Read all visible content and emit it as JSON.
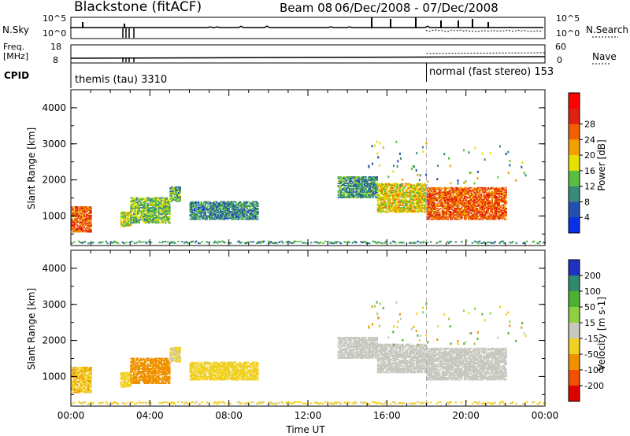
{
  "header": {
    "title": "Blackstone (fitACF)",
    "beam": "Beam 08",
    "dates": "06/Dec/2008 - 07/Dec/2008"
  },
  "top_panels": {
    "nsky_label": "N.Sky",
    "nsky_ticks": [
      "10^5",
      "10^0"
    ],
    "nsearch_label": "N.Search",
    "nsearch_ticks": [
      "10^5",
      "10^0"
    ],
    "freq_label_1": "Freq.",
    "freq_label_2": "[MHz]",
    "freq_ticks": [
      "18",
      "8"
    ],
    "nave_label": "Nave",
    "nave_ticks": [
      "60",
      "0"
    ],
    "cpid_label": "CPID",
    "cpid_segments": [
      {
        "label": "themis (tau) 3310",
        "start_hour": 0,
        "end_hour": 18
      },
      {
        "label": "normal (fast stereo) 153",
        "start_hour": 18,
        "end_hour": 24
      }
    ]
  },
  "axes": {
    "ylabel": "Slant Range [km]",
    "yticks": [
      "1000",
      "2000",
      "3000",
      "4000"
    ],
    "xticks": [
      "00:00",
      "04:00",
      "08:00",
      "12:00",
      "16:00",
      "20:00",
      "00:00"
    ],
    "xlabel": "Time UT"
  },
  "colorbars": {
    "power": {
      "label": "Power [dB]",
      "ticks": [
        "4",
        "8",
        "12",
        "16",
        "20",
        "24",
        "28"
      ],
      "colors": [
        "#0a2fe6",
        "#234fb0",
        "#3a8a7a",
        "#58c040",
        "#e6e000",
        "#f0a000",
        "#f06000",
        "#e02010",
        "#ff0000"
      ]
    },
    "velocity": {
      "label": "Velocity [m s-1]",
      "ticks": [
        "200",
        "100",
        "50",
        "15",
        "-15",
        "-50",
        "-100",
        "-200"
      ],
      "colors": [
        "#2030c0",
        "#2e8a6e",
        "#4cb030",
        "#8fd040",
        "#c8c8c0",
        "#f0d020",
        "#f09000",
        "#f05000",
        "#e00000"
      ]
    }
  },
  "chart_data": [
    {
      "type": "heatmap",
      "title": "Power",
      "xlabel": "Time UT",
      "ylabel": "Slant Range [km]",
      "xlim": [
        0,
        24
      ],
      "ylim": [
        180,
        4500
      ],
      "colorbar_label": "Power [dB]",
      "colorbar_range": [
        0,
        30
      ],
      "regions": [
        {
          "t0": 0.0,
          "t1": 1.0,
          "r0": 550,
          "r1": 1250,
          "value": 22
        },
        {
          "t0": 2.5,
          "t1": 3.0,
          "r0": 700,
          "r1": 1100,
          "value": 14
        },
        {
          "t0": 3.0,
          "t1": 5.0,
          "r0": 800,
          "r1": 1500,
          "value": 12
        },
        {
          "t0": 5.0,
          "t1": 5.5,
          "r0": 1400,
          "r1": 1800,
          "value": 10
        },
        {
          "t0": 6.0,
          "t1": 9.5,
          "r0": 900,
          "r1": 1400,
          "value": 8
        },
        {
          "t0": 13.5,
          "t1": 15.5,
          "r0": 1500,
          "r1": 2100,
          "value": 9
        },
        {
          "t0": 15.5,
          "t1": 18.0,
          "r0": 1100,
          "r1": 1900,
          "value": 16
        },
        {
          "t0": 18.0,
          "t1": 22.0,
          "r0": 900,
          "r1": 1800,
          "value": 22
        }
      ]
    },
    {
      "type": "heatmap",
      "title": "Velocity",
      "xlabel": "Time UT",
      "ylabel": "Slant Range [km]",
      "xlim": [
        0,
        24
      ],
      "ylim": [
        180,
        4500
      ],
      "colorbar_label": "Velocity [m s-1]",
      "colorbar_range": [
        -200,
        200
      ],
      "regions": [
        {
          "t0": 0.0,
          "t1": 1.0,
          "r0": 550,
          "r1": 1250,
          "value": -60
        },
        {
          "t0": 2.5,
          "t1": 3.0,
          "r0": 700,
          "r1": 1100,
          "value": -40
        },
        {
          "t0": 3.0,
          "t1": 5.0,
          "r0": 800,
          "r1": 1500,
          "value": -80
        },
        {
          "t0": 5.0,
          "t1": 5.5,
          "r0": 1400,
          "r1": 1800,
          "value": -30
        },
        {
          "t0": 6.0,
          "t1": 9.5,
          "r0": 900,
          "r1": 1400,
          "value": -40
        },
        {
          "t0": 13.5,
          "t1": 15.5,
          "r0": 1500,
          "r1": 2100,
          "value": 0
        },
        {
          "t0": 15.5,
          "t1": 18.0,
          "r0": 1100,
          "r1": 1900,
          "value": 0
        },
        {
          "t0": 18.0,
          "t1": 22.0,
          "r0": 900,
          "r1": 1800,
          "value": 0
        }
      ]
    }
  ]
}
